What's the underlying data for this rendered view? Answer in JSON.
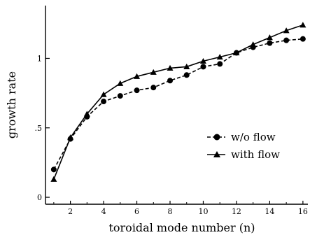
{
  "chart_data": {
    "type": "line",
    "title": "",
    "xlabel": "toroidal mode number (n)",
    "ylabel": "growth rate",
    "xlim": [
      0.5,
      16.3
    ],
    "ylim": [
      -0.05,
      1.38
    ],
    "grid": false,
    "legend_position": "center-right",
    "x_ticks": [
      2,
      4,
      6,
      8,
      10,
      12,
      14,
      16
    ],
    "x_tick_labels": [
      "2",
      "4",
      "6",
      "8",
      "10",
      "12",
      "14",
      "16"
    ],
    "y_ticks": [
      0,
      0.5,
      1
    ],
    "y_tick_labels": [
      "0",
      ".5",
      "1"
    ],
    "x": [
      1,
      2,
      3,
      4,
      5,
      6,
      7,
      8,
      9,
      10,
      11,
      12,
      13,
      14,
      15,
      16
    ],
    "series": [
      {
        "name": "w/o flow",
        "marker": "circle",
        "line_style": "dashed",
        "color": "#000000",
        "values": [
          0.2,
          0.42,
          0.58,
          0.69,
          0.73,
          0.77,
          0.79,
          0.84,
          0.88,
          0.94,
          0.96,
          1.04,
          1.08,
          1.11,
          1.13,
          1.14
        ]
      },
      {
        "name": "with flow",
        "marker": "triangle",
        "line_style": "solid",
        "color": "#000000",
        "values": [
          0.13,
          0.43,
          0.6,
          0.74,
          0.82,
          0.87,
          0.9,
          0.93,
          0.94,
          0.98,
          1.01,
          1.04,
          1.1,
          1.15,
          1.2,
          1.24
        ]
      }
    ]
  }
}
